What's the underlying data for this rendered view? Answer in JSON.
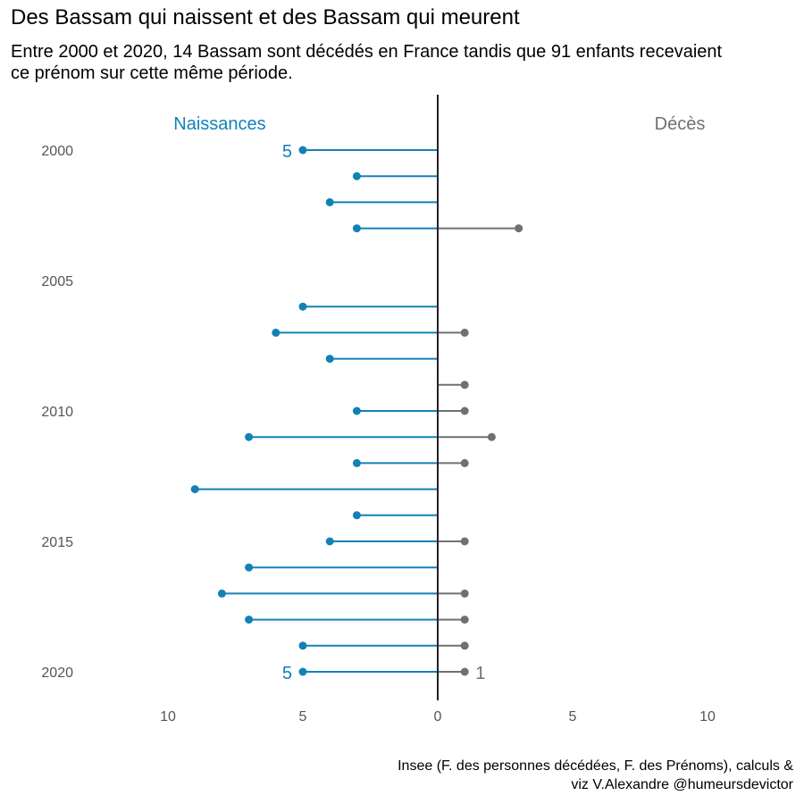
{
  "title": "Des Bassam qui naissent et des Bassam qui meurent",
  "subtitle": "Entre 2000 et 2020, 14 Bassam sont décédés en France tandis que 91 enfants recevaient ce prénom sur cette même période.",
  "caption_lines": [
    "Insee (F. des personnes décédées, F. des Prénoms), calculs &",
    "viz V.Alexandre @humeursdevictor"
  ],
  "colors": {
    "births": "#1380B8",
    "deaths": "#707070",
    "axis": "#222222",
    "tick_text": "#555555"
  },
  "chart_data": {
    "type": "lollipop",
    "series": [
      {
        "name": "Naissances",
        "direction": "left",
        "color": "#1380B8",
        "values": [
          5,
          3,
          4,
          3,
          0,
          5,
          6,
          4,
          0,
          3,
          7,
          3,
          9,
          3,
          4,
          7,
          8,
          7,
          5,
          5
        ]
      },
      {
        "name": "Décès",
        "direction": "right",
        "color": "#707070",
        "values": [
          0,
          0,
          0,
          3,
          0,
          0,
          1,
          0,
          1,
          1,
          2,
          1,
          0,
          0,
          1,
          0,
          1,
          1,
          1,
          1
        ]
      }
    ],
    "years": [
      2000,
      2001,
      2002,
      2003,
      2005,
      2006,
      2007,
      2008,
      2009,
      2010,
      2011,
      2012,
      2013,
      2014,
      2015,
      2016,
      2017,
      2018,
      2019,
      2020
    ],
    "y_tick_labels": [
      2000,
      2005,
      2010,
      2015,
      2020
    ],
    "x_tick_labels": [
      "10",
      "5",
      "0",
      "5",
      "10"
    ],
    "x_tick_values": [
      -10,
      -5,
      0,
      5,
      10
    ],
    "xlim": [
      -13,
      13
    ],
    "ylim": [
      2000,
      2020
    ],
    "value_labels": [
      {
        "series": "Naissances",
        "year": 2000,
        "text": "5"
      },
      {
        "series": "Naissances",
        "year": 2020,
        "text": "5"
      },
      {
        "series": "Décès",
        "year": 2020,
        "text": "1"
      }
    ],
    "grid": false
  }
}
